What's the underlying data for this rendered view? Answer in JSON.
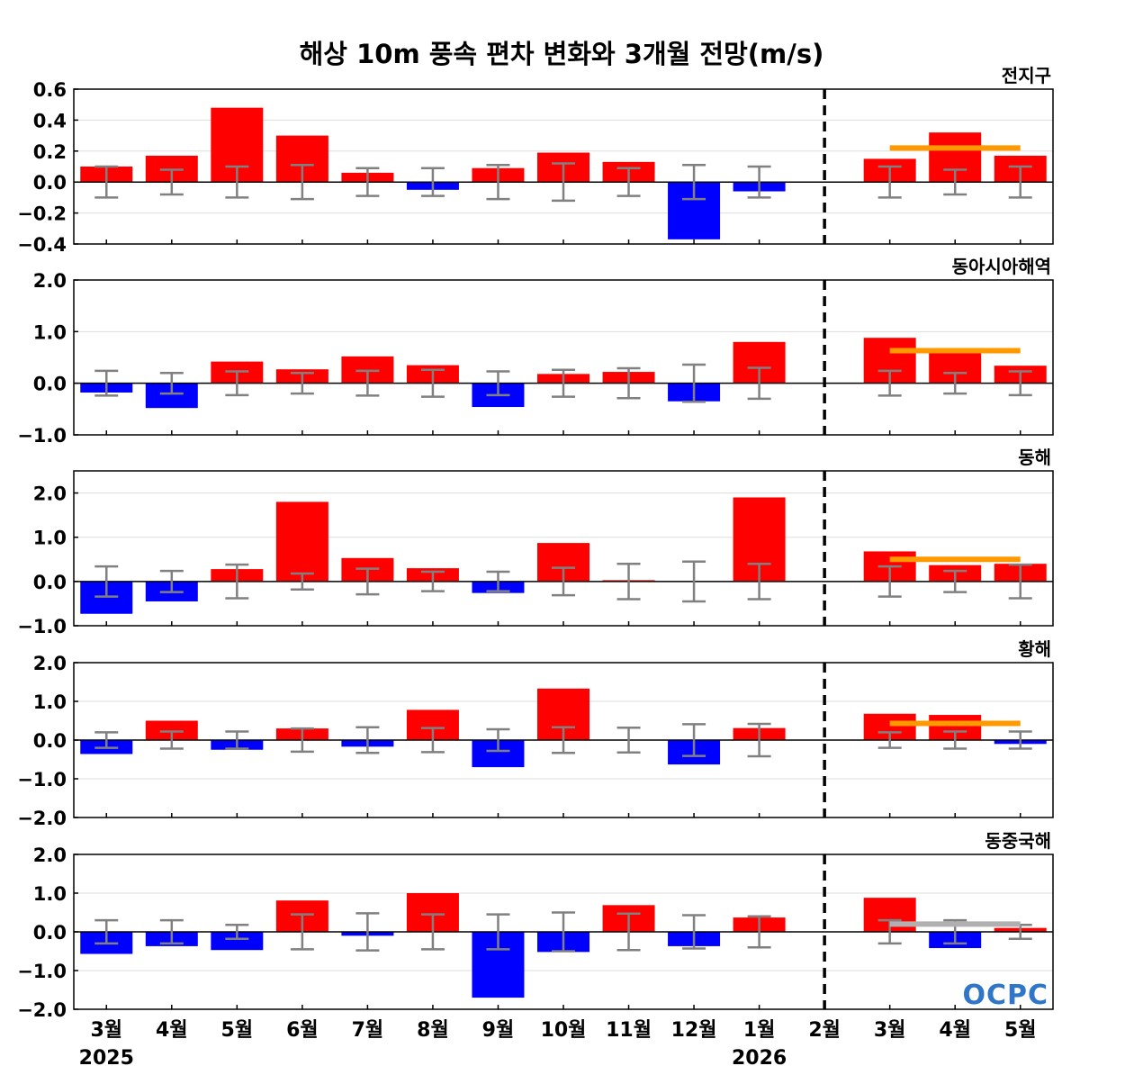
{
  "chart_data": {
    "type": "bar",
    "title": "해상 10m 풍속 편차 변화와 3개월 전망(m/s)",
    "categories": [
      "3월",
      "4월",
      "5월",
      "6월",
      "7월",
      "8월",
      "9월",
      "10월",
      "11월",
      "12월",
      "1월",
      "2월",
      "3월",
      "4월",
      "5월"
    ],
    "year_labels": [
      {
        "index": 0,
        "label": "2025"
      },
      {
        "index": 10,
        "label": "2026"
      }
    ],
    "forecast_divider_after_index": 11,
    "logo": "OCPC",
    "colors": {
      "positive": "#ff0000",
      "negative": "#0000ff",
      "error_bar": "#808080",
      "outlook_line": "#ff9900",
      "outlook_neutral": "#b0b0b0",
      "divider": "#000000",
      "grid": "#dddddd"
    },
    "panels": [
      {
        "region": "전지구",
        "ylim": [
          -0.4,
          0.6
        ],
        "yticks": [
          0.6,
          0.4,
          0.2,
          0.0,
          -0.2,
          -0.4
        ],
        "ytick_labels": [
          "0.6",
          "0.4",
          "0.2",
          "0.0",
          "−0.2",
          "−0.4"
        ],
        "values": [
          0.1,
          0.17,
          0.48,
          0.3,
          0.06,
          -0.05,
          0.09,
          0.19,
          0.13,
          -0.37,
          -0.06,
          0.0,
          0.15,
          0.32,
          0.17
        ],
        "error_bars": [
          0.1,
          0.08,
          0.1,
          0.11,
          0.09,
          0.09,
          0.11,
          0.12,
          0.09,
          0.11,
          0.1,
          null,
          0.1,
          0.08,
          0.1
        ],
        "outlook": {
          "value": 0.22,
          "from_index": 12,
          "to_index": 14,
          "color": "orange"
        }
      },
      {
        "region": "동아시아해역",
        "ylim": [
          -1.0,
          2.0
        ],
        "yticks": [
          2.0,
          1.0,
          0.0,
          -1.0
        ],
        "ytick_labels": [
          "2.0",
          "1.0",
          "0.0",
          "−1.0"
        ],
        "values": [
          -0.18,
          -0.48,
          0.42,
          0.27,
          0.52,
          0.35,
          -0.46,
          0.18,
          0.22,
          -0.35,
          0.8,
          0.0,
          0.88,
          0.65,
          0.34
        ],
        "error_bars": [
          0.24,
          0.2,
          0.23,
          0.2,
          0.24,
          0.26,
          0.23,
          0.26,
          0.29,
          0.36,
          0.3,
          null,
          0.24,
          0.2,
          0.23
        ],
        "outlook": {
          "value": 0.63,
          "from_index": 12,
          "to_index": 14,
          "color": "orange"
        }
      },
      {
        "region": "동해",
        "ylim": [
          -1.0,
          2.5
        ],
        "yticks": [
          2.0,
          1.0,
          0.0,
          -1.0
        ],
        "ytick_labels": [
          "2.0",
          "1.0",
          "0.0",
          "−1.0"
        ],
        "values": [
          -0.73,
          -0.45,
          0.28,
          1.8,
          0.53,
          0.3,
          -0.26,
          0.87,
          0.03,
          0.0,
          1.9,
          0.0,
          0.68,
          0.37,
          0.4
        ],
        "error_bars": [
          0.34,
          0.24,
          0.38,
          0.18,
          0.29,
          0.22,
          0.22,
          0.31,
          0.4,
          0.45,
          0.4,
          null,
          0.34,
          0.24,
          0.38
        ],
        "outlook": {
          "value": 0.5,
          "from_index": 12,
          "to_index": 14,
          "color": "orange"
        }
      },
      {
        "region": "황해",
        "ylim": [
          -2.0,
          2.0
        ],
        "yticks": [
          2.0,
          1.0,
          0.0,
          -1.0,
          -2.0
        ],
        "ytick_labels": [
          "2.0",
          "1.0",
          "0.0",
          "−1.0",
          "−2.0"
        ],
        "values": [
          -0.36,
          0.5,
          -0.25,
          0.3,
          -0.17,
          0.78,
          -0.7,
          1.33,
          0.0,
          -0.63,
          0.31,
          0.0,
          0.68,
          0.65,
          -0.1
        ],
        "error_bars": [
          0.2,
          0.22,
          0.22,
          0.3,
          0.33,
          0.31,
          0.28,
          0.33,
          0.32,
          0.41,
          0.42,
          null,
          0.2,
          0.22,
          0.22
        ],
        "outlook": {
          "value": 0.43,
          "from_index": 12,
          "to_index": 14,
          "color": "orange"
        }
      },
      {
        "region": "동중국해",
        "ylim": [
          -2.0,
          2.0
        ],
        "yticks": [
          2.0,
          1.0,
          0.0,
          -1.0,
          -2.0
        ],
        "ytick_labels": [
          "2.0",
          "1.0",
          "0.0",
          "−1.0",
          "−2.0"
        ],
        "values": [
          -0.57,
          -0.37,
          -0.47,
          0.81,
          -0.1,
          1.0,
          -1.7,
          -0.52,
          0.69,
          -0.37,
          0.37,
          0.0,
          0.88,
          -0.42,
          0.1
        ],
        "error_bars": [
          0.3,
          0.3,
          0.18,
          0.45,
          0.48,
          0.45,
          0.45,
          0.5,
          0.47,
          0.43,
          0.4,
          null,
          0.3,
          0.3,
          0.18
        ],
        "outlook": {
          "value": 0.2,
          "from_index": 12,
          "to_index": 14,
          "color": "gray"
        }
      }
    ]
  }
}
